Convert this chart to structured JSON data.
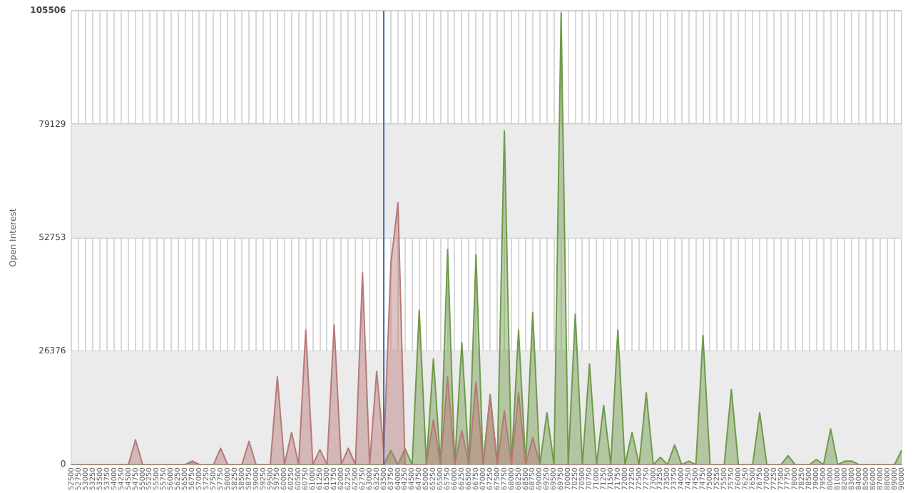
{
  "chart_data": {
    "type": "area",
    "ylabel": "Open Interest",
    "categories": [
      "52500",
      "52750",
      "53000",
      "53250",
      "53500",
      "53750",
      "54000",
      "54250",
      "54500",
      "54750",
      "55000",
      "55250",
      "55500",
      "55750",
      "56000",
      "56250",
      "56500",
      "56750",
      "57000",
      "57250",
      "57500",
      "57750",
      "58000",
      "58250",
      "58500",
      "58750",
      "59000",
      "59250",
      "59500",
      "59750",
      "60000",
      "60250",
      "60500",
      "60750",
      "61000",
      "61250",
      "61500",
      "61750",
      "62000",
      "62250",
      "62500",
      "62750",
      "63000",
      "63250",
      "63500",
      "63750",
      "64000",
      "64250",
      "64500",
      "64750",
      "65000",
      "65250",
      "65500",
      "65750",
      "66000",
      "66250",
      "66500",
      "66750",
      "67000",
      "67250",
      "67500",
      "67750",
      "68000",
      "68250",
      "68500",
      "68750",
      "69000",
      "69250",
      "69500",
      "69750",
      "70000",
      "70250",
      "70500",
      "70750",
      "71000",
      "71250",
      "71500",
      "71750",
      "72000",
      "72250",
      "72500",
      "72750",
      "73000",
      "73250",
      "73500",
      "73750",
      "74000",
      "74250",
      "74500",
      "74750",
      "75000",
      "75250",
      "75500",
      "75750",
      "76000",
      "76250",
      "76500",
      "76750",
      "77000",
      "77250",
      "77500",
      "77750",
      "78000",
      "78250",
      "78500",
      "79000",
      "79500",
      "80000",
      "81000",
      "82000",
      "83000",
      "84000",
      "85000",
      "86000",
      "87000",
      "88000",
      "89000",
      "90000"
    ],
    "series": [
      {
        "color": "#b87878",
        "values": [
          0,
          0,
          0,
          0,
          0,
          0,
          0,
          0,
          0,
          5800,
          0,
          0,
          0,
          0,
          0,
          0,
          0,
          800,
          0,
          0,
          0,
          3800,
          0,
          0,
          0,
          5400,
          0,
          0,
          0,
          20400,
          0,
          7500,
          0,
          31300,
          0,
          3500,
          0,
          32500,
          0,
          3800,
          0,
          44600,
          0,
          21700,
          3000,
          46700,
          60900,
          0,
          0,
          0,
          0,
          10400,
          0,
          20400,
          0,
          7900,
          0,
          19200,
          0,
          15800,
          0,
          12500,
          0,
          16700,
          0,
          6300,
          0,
          0,
          0,
          0,
          0,
          0,
          0,
          0,
          0,
          0,
          0,
          0,
          0,
          0,
          0,
          0,
          0,
          0,
          0,
          0,
          0,
          0,
          0,
          0,
          0,
          0,
          0,
          0,
          0,
          0,
          0,
          0,
          0,
          0,
          0,
          0,
          0,
          0,
          0,
          0,
          0,
          0,
          0,
          0,
          0,
          0,
          0,
          0,
          0,
          0,
          0,
          0
        ]
      },
      {
        "color": "#6f9a4a",
        "values": [
          0,
          0,
          0,
          0,
          0,
          0,
          0,
          0,
          0,
          0,
          0,
          0,
          0,
          0,
          0,
          0,
          0,
          800,
          0,
          0,
          0,
          0,
          0,
          0,
          0,
          0,
          0,
          0,
          0,
          0,
          0,
          0,
          0,
          0,
          0,
          0,
          0,
          0,
          0,
          0,
          0,
          0,
          0,
          0,
          0,
          3300,
          0,
          3700,
          0,
          35900,
          0,
          24600,
          0,
          50000,
          0,
          28400,
          0,
          48800,
          0,
          16300,
          0,
          77600,
          0,
          31300,
          0,
          35400,
          0,
          12100,
          0,
          105000,
          0,
          35000,
          0,
          23400,
          0,
          13800,
          0,
          31300,
          0,
          7500,
          0,
          16700,
          0,
          1700,
          0,
          4600,
          0,
          800,
          0,
          30000,
          0,
          0,
          0,
          17500,
          0,
          0,
          0,
          12100,
          0,
          0,
          0,
          2100,
          0,
          0,
          0,
          1200,
          0,
          8300,
          0,
          800,
          800,
          0,
          0,
          0,
          0,
          0,
          0,
          3300
        ]
      }
    ],
    "ylim": [
      0,
      105506
    ],
    "yticks": [
      0,
      26376,
      52753,
      79129,
      105506
    ],
    "grid": true,
    "bands": [
      {
        "axis": "y",
        "from": 0,
        "to": 26376,
        "color": "#ebebeb"
      },
      {
        "axis": "y",
        "from": 52753,
        "to": 79129,
        "color": "#ebebeb"
      }
    ],
    "ref_lines": [
      {
        "axis": "x",
        "value": "63500",
        "color": "#4a6aa8"
      }
    ]
  }
}
